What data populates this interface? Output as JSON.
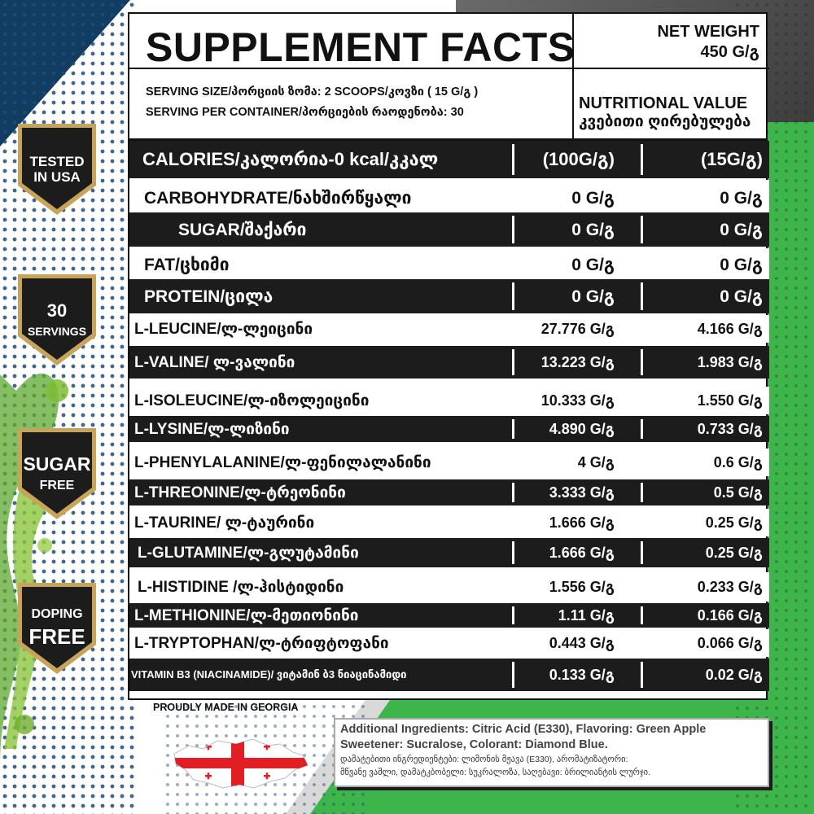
{
  "badges": [
    {
      "line1": "TESTED",
      "line2": "IN USA"
    },
    {
      "line1": "30",
      "line2": "SERVINGS"
    },
    {
      "line1": "SUGAR",
      "line2": "FREE"
    },
    {
      "line1": "DOPING",
      "line2": "FREE"
    }
  ],
  "header": {
    "title": "SUPPLEMENT FACTS",
    "net_weight_label": "NET WEIGHT",
    "net_weight_value": "450 G/გ",
    "serving_size": "SERVING SIZE/პორციის ზომა: 2 SCOOPS/კოვზი ( 15 G/გ )",
    "servings_per_container": "SERVING PER CONTAINER/პორციების რაოდენობა:  30",
    "nutritional_value_en": "NUTRITIONAL  VALUE",
    "nutritional_value_ka": "კვებითი ღირებულება"
  },
  "rows": [
    {
      "name": "CALORIES/კალორია-0 kcal/კკალ",
      "v1": "(100G/გ)",
      "v2": "(15G/გ)"
    },
    {
      "name": "CARBOHYDRATE/ნახშირწყალი",
      "v1": "0 G/გ",
      "v2": "0 G/გ"
    },
    {
      "name": "SUGAR/შაქარი",
      "v1": "0 G/გ",
      "v2": "0 G/გ"
    },
    {
      "name": "FAT/ცხიმი",
      "v1": "0 G/გ",
      "v2": "0 G/გ"
    },
    {
      "name": "PROTEIN/ცილა",
      "v1": "0 G/გ",
      "v2": "0 G/გ"
    },
    {
      "name": "L-LEUCINE/ლ-ლეიცინი",
      "v1": "27.776 G/გ",
      "v2": "4.166 G/გ"
    },
    {
      "name": "L-VALINE/ ლ-ვალინი",
      "v1": "13.223 G/გ",
      "v2": "1.983 G/გ"
    },
    {
      "name": "L-ISOLEUCINE/ლ-იზოლეიცინი",
      "v1": "10.333 G/გ",
      "v2": "1.550 G/გ"
    },
    {
      "name": "L-LYSINE/ლ-ლიზინი",
      "v1": "4.890 G/გ",
      "v2": "0.733 G/გ"
    },
    {
      "name": "L-PHENYLALANINE/ლ-ფენილალანინი",
      "v1": "4 G/გ",
      "v2": "0.6 G/გ"
    },
    {
      "name": "L-THREONINE/ლ-ტრეონინი",
      "v1": "3.333 G/გ",
      "v2": "0.5 G/გ"
    },
    {
      "name": "L-TAURINE/ ლ-ტაურინი",
      "v1": "1.666 G/გ",
      "v2": "0.25 G/გ"
    },
    {
      "name": "L-GLUTAMINE/ლ-გლუტამინი",
      "v1": "1.666 G/გ",
      "v2": "0.25 G/გ"
    },
    {
      "name": "L-HISTIDINE /ლ-ჰისტიდინი",
      "v1": "1.556 G/გ",
      "v2": "0.233 G/გ"
    },
    {
      "name": "L-METHIONINE/ლ-მეთიონინი",
      "v1": "1.11 G/გ",
      "v2": "0.166 G/გ"
    },
    {
      "name": "L-TRYPTOPHAN/ლ-ტრიფტოფანი",
      "v1": "0.443 G/გ",
      "v2": "0.066 G/გ"
    },
    {
      "name": "VITAMIN B3 (NIACINAMIDE)/ ვიტამინ ბ3 ნიაცინამიდი",
      "v1": "0.133 G/გ",
      "v2": "0.02 G/გ"
    }
  ],
  "footer": {
    "made_in": "PROUDLY MADE IN GEORGIA",
    "ingredients_en_1": "Additional Ingredients: Citric Acid (E330), Flavoring: Green Apple",
    "ingredients_en_2": "Sweetener: Sucralose,  Colorant:  Diamond Blue.",
    "ingredients_ka_1": "დამატებითი ინგრედიენტები:  ლიმონის მჟავა (E330),  არომატიზატორი:",
    "ingredients_ka_2": "მწვანე ვაშლი, დამატკბობელი: სუკრალოზა,   საღებავი: ბრილიანტის ლურჯი."
  },
  "colors": {
    "accent_green": "#3db54a",
    "dark": "#1c1c1c",
    "navy": "#123d63",
    "flag_red": "#e01e24"
  }
}
